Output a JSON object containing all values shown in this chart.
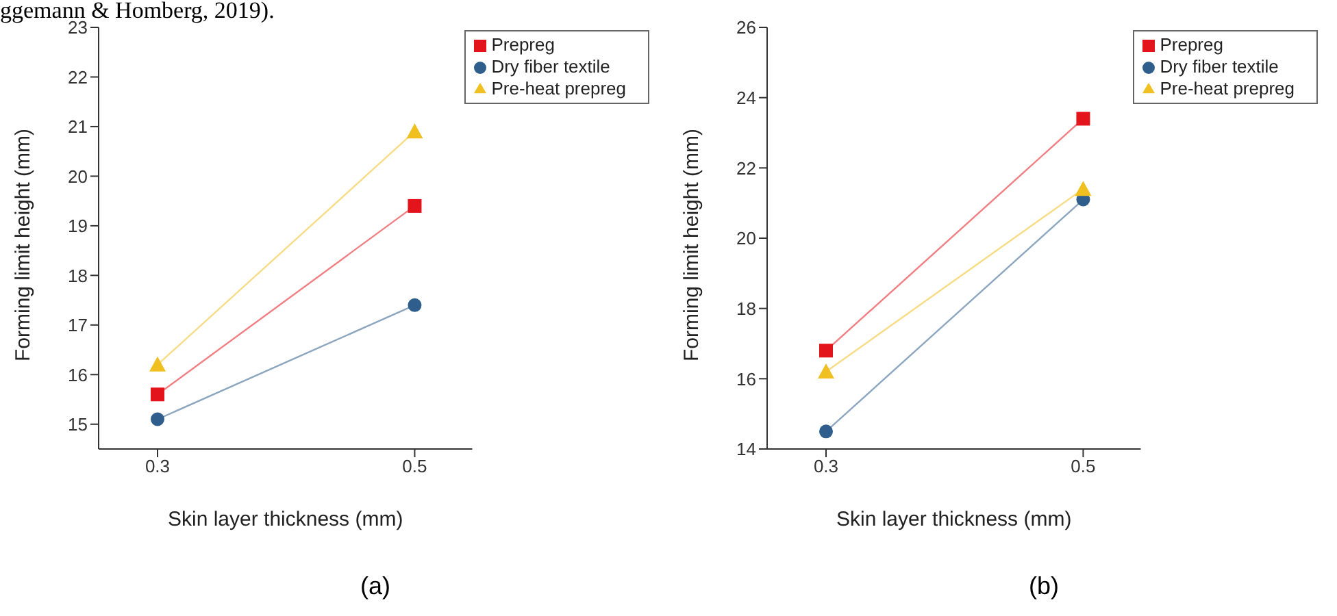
{
  "chart_data": [
    {
      "type": "line",
      "xlabel": "Skin layer thickness (mm)",
      "ylabel": "Forming limit height (mm)",
      "categories": [
        "0.3",
        "0.5"
      ],
      "series": [
        {
          "name": "Prepreg",
          "color": "#e3141c",
          "marker": "square",
          "values": [
            15.6,
            19.4
          ]
        },
        {
          "name": "Dry fiber textile",
          "color": "#2f5d8c",
          "marker": "circle",
          "values": [
            15.1,
            17.4
          ]
        },
        {
          "name": "Pre-heat prepreg",
          "color": "#f0c020",
          "marker": "triangle",
          "values": [
            16.2,
            20.9
          ]
        }
      ],
      "ylim": [
        14.5,
        23
      ],
      "yticks": [
        15,
        16,
        17,
        18,
        19,
        20,
        21,
        22,
        23
      ],
      "legend": "top right",
      "line_style": "solid",
      "annotations": [
        "ggemann & Homberg, 2019).",
        "(a)"
      ]
    },
    {
      "type": "line",
      "xlabel": "Skin layer thickness (mm)",
      "ylabel": "Forming limit height (mm)",
      "categories": [
        "0.3",
        "0.5"
      ],
      "series": [
        {
          "name": "Prepreg",
          "color": "#e3141c",
          "marker": "square",
          "values": [
            16.8,
            23.4
          ]
        },
        {
          "name": "Dry fiber textile",
          "color": "#2f5d8c",
          "marker": "circle",
          "values": [
            14.5,
            21.1
          ]
        },
        {
          "name": "Pre-heat prepreg",
          "color": "#f0c020",
          "marker": "triangle",
          "values": [
            16.2,
            21.4
          ]
        }
      ],
      "ylim": [
        14,
        26
      ],
      "yticks": [
        14,
        16,
        18,
        20,
        22,
        24,
        26
      ],
      "legend": "top right",
      "line_style": "solid",
      "annotations": [
        "(b)"
      ]
    }
  ]
}
